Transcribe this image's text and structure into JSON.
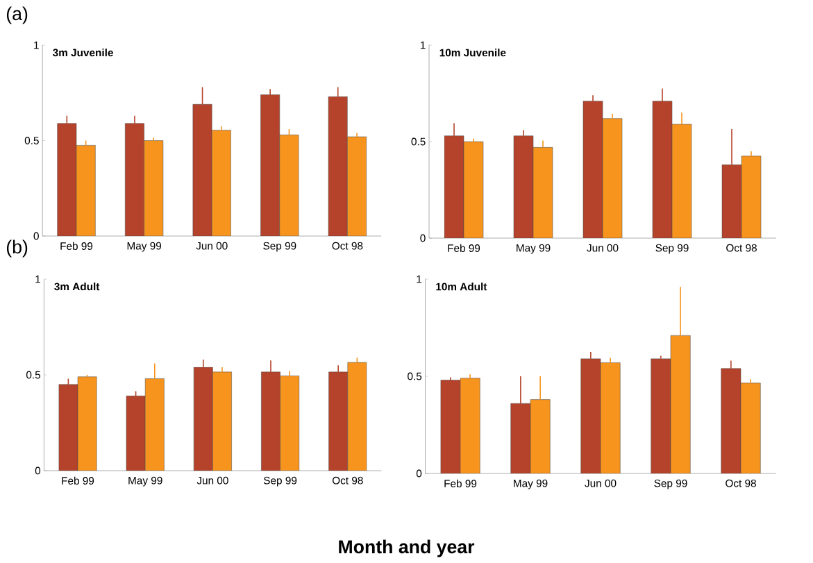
{
  "chart_data": [
    {
      "type": "bar",
      "title": "3m Juvenile",
      "annotations": [
        "(a)"
      ],
      "categories": [
        "Feb 99",
        "May 99",
        "Jun 00",
        "Sep 99",
        "Oct 98"
      ],
      "ylim": [
        0,
        1
      ],
      "yticks": [
        0,
        0.5,
        1
      ],
      "grid": false,
      "series": [
        {
          "color": "#b5432b",
          "values": [
            0.59,
            0.59,
            0.69,
            0.74,
            0.73
          ],
          "errors": [
            [
              0.59,
              0.63
            ],
            [
              0.59,
              0.63
            ],
            [
              0.69,
              0.78
            ],
            [
              0.74,
              0.77
            ],
            [
              0.73,
              0.78
            ]
          ]
        },
        {
          "color": "#f7941d",
          "values": [
            0.475,
            0.5,
            0.555,
            0.53,
            0.52
          ],
          "errors": [
            [
              0.475,
              0.5
            ],
            [
              0.5,
              0.515
            ],
            [
              0.555,
              0.575
            ],
            [
              0.53,
              0.56
            ],
            [
              0.52,
              0.54
            ]
          ]
        }
      ]
    },
    {
      "type": "bar",
      "title": "10m Juvenile",
      "categories": [
        "Feb 99",
        "May 99",
        "Jun 00",
        "Sep 99",
        "Oct 98"
      ],
      "ylim": [
        0,
        1
      ],
      "yticks": [
        0,
        0.5,
        1
      ],
      "grid": false,
      "series": [
        {
          "color": "#b5432b",
          "values": [
            0.53,
            0.53,
            0.71,
            0.71,
            0.38
          ],
          "errors": [
            [
              0.53,
              0.595
            ],
            [
              0.53,
              0.56
            ],
            [
              0.71,
              0.74
            ],
            [
              0.71,
              0.775
            ],
            [
              0.38,
              0.565
            ]
          ]
        },
        {
          "color": "#f7941d",
          "values": [
            0.5,
            0.47,
            0.62,
            0.59,
            0.425
          ],
          "errors": [
            [
              0.5,
              0.515
            ],
            [
              0.47,
              0.505
            ],
            [
              0.62,
              0.645
            ],
            [
              0.59,
              0.65
            ],
            [
              0.425,
              0.45
            ]
          ]
        }
      ]
    },
    {
      "type": "bar",
      "title": "3m Adult",
      "annotations": [
        "(b)"
      ],
      "categories": [
        "Feb 99",
        "May 99",
        "Jun 00",
        "Sep 99",
        "Oct 98"
      ],
      "ylim": [
        0,
        1
      ],
      "yticks": [
        0,
        0.5,
        1
      ],
      "grid": false,
      "series": [
        {
          "color": "#b5432b",
          "values": [
            0.45,
            0.39,
            0.54,
            0.515,
            0.515
          ],
          "errors": [
            [
              0.45,
              0.48
            ],
            [
              0.39,
              0.415
            ],
            [
              0.54,
              0.58
            ],
            [
              0.515,
              0.575
            ],
            [
              0.515,
              0.55
            ]
          ]
        },
        {
          "color": "#f7941d",
          "values": [
            0.49,
            0.48,
            0.515,
            0.495,
            0.565
          ],
          "errors": [
            [
              0.49,
              0.5
            ],
            [
              0.48,
              0.56
            ],
            [
              0.515,
              0.54
            ],
            [
              0.495,
              0.52
            ],
            [
              0.565,
              0.59
            ]
          ]
        }
      ]
    },
    {
      "type": "bar",
      "title": "10m Adult",
      "annotations": [
        "Month and year"
      ],
      "categories": [
        "Feb 99",
        "May 99",
        "Jun 00",
        "Sep 99",
        "Oct 98"
      ],
      "ylim": [
        0,
        1
      ],
      "yticks": [
        0,
        0.5,
        1
      ],
      "grid": false,
      "series": [
        {
          "color": "#b5432b",
          "values": [
            0.48,
            0.36,
            0.59,
            0.59,
            0.54
          ],
          "errors": [
            [
              0.48,
              0.495
            ],
            [
              0.36,
              0.5
            ],
            [
              0.59,
              0.625
            ],
            [
              0.59,
              0.605
            ],
            [
              0.54,
              0.58
            ]
          ]
        },
        {
          "color": "#f7941d",
          "values": [
            0.49,
            0.38,
            0.57,
            0.71,
            0.465
          ],
          "errors": [
            [
              0.49,
              0.51
            ],
            [
              0.38,
              0.5
            ],
            [
              0.57,
              0.595
            ],
            [
              0.71,
              0.96
            ],
            [
              0.465,
              0.485
            ]
          ]
        }
      ]
    }
  ]
}
